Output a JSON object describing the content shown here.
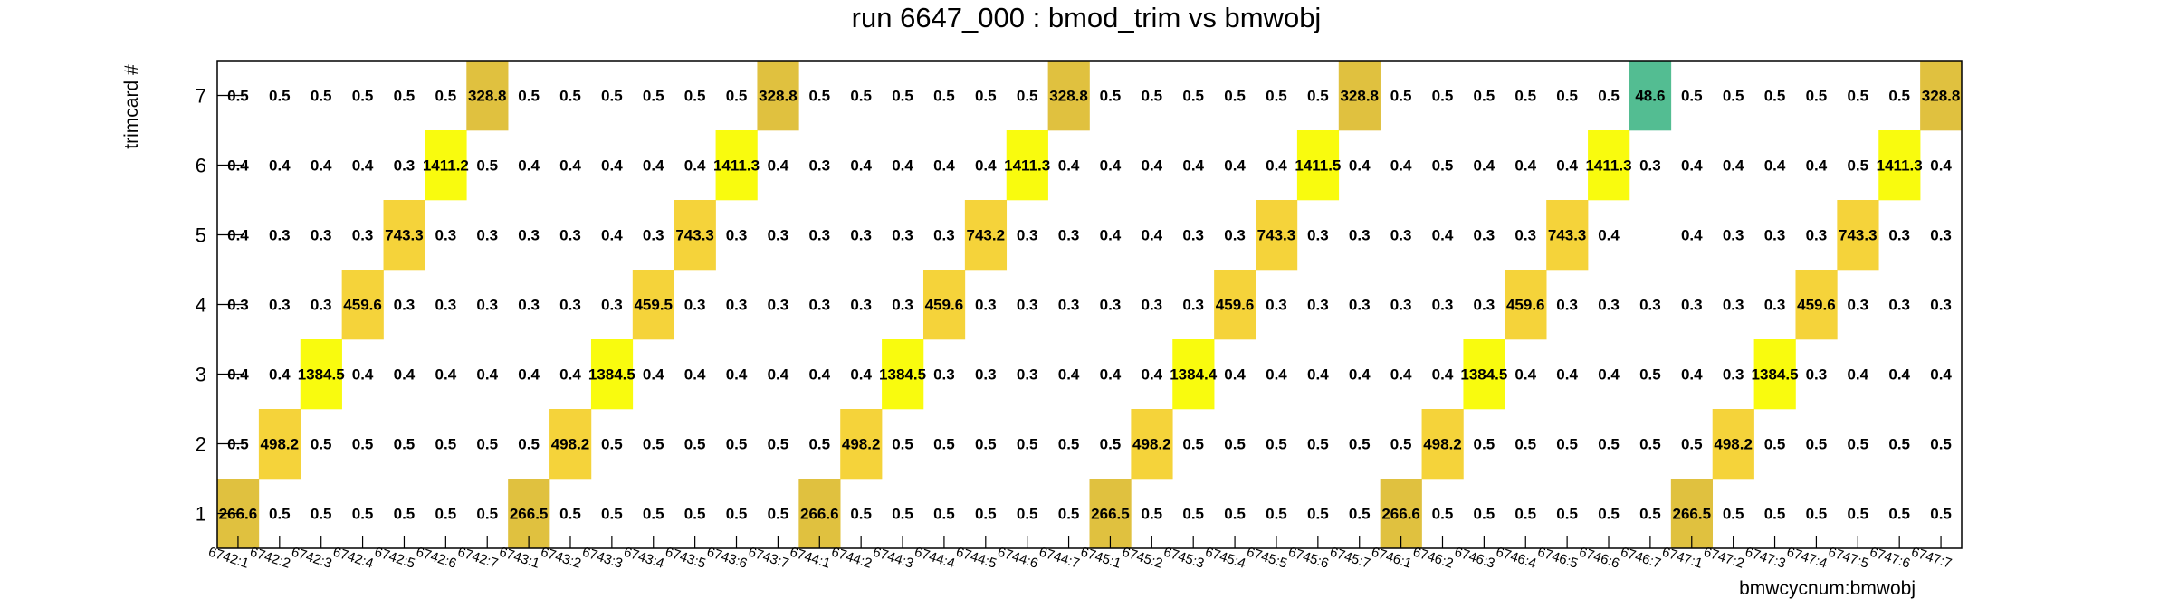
{
  "chart_data": {
    "type": "heatmap",
    "title": "run 6647_000 : bmod_trim vs bmwobj",
    "xlabel": "bmwcycnum:bmwobj",
    "ylabel": "trimcard #",
    "x_categories": [
      "6742:1",
      "6742:2",
      "6742:3",
      "6742:4",
      "6742:5",
      "6742:6",
      "6742:7",
      "6743:1",
      "6743:2",
      "6743:3",
      "6743:4",
      "6743:5",
      "6743:6",
      "6743:7",
      "6744:1",
      "6744:2",
      "6744:3",
      "6744:4",
      "6744:5",
      "6744:6",
      "6744:7",
      "6745:1",
      "6745:2",
      "6745:3",
      "6745:4",
      "6745:5",
      "6745:6",
      "6745:7",
      "6746:1",
      "6746:2",
      "6746:3",
      "6746:4",
      "6746:5",
      "6746:6",
      "6746:7",
      "6747:1",
      "6747:2",
      "6747:3",
      "6747:4",
      "6747:5",
      "6747:6",
      "6747:7"
    ],
    "y_categories": [
      "1",
      "2",
      "3",
      "4",
      "5",
      "6",
      "7"
    ],
    "rows": {
      "1": [
        "266.6",
        "0.5",
        "0.5",
        "0.5",
        "0.5",
        "0.5",
        "0.5",
        "266.5",
        "0.5",
        "0.5",
        "0.5",
        "0.5",
        "0.5",
        "0.5",
        "266.6",
        "0.5",
        "0.5",
        "0.5",
        "0.5",
        "0.5",
        "0.5",
        "266.5",
        "0.5",
        "0.5",
        "0.5",
        "0.5",
        "0.5",
        "0.5",
        "266.6",
        "0.5",
        "0.5",
        "0.5",
        "0.5",
        "0.5",
        "0.5",
        "266.5",
        "0.5",
        "0.5",
        "0.5",
        "0.5",
        "0.5",
        "0.5"
      ],
      "2": [
        "0.5",
        "498.2",
        "0.5",
        "0.5",
        "0.5",
        "0.5",
        "0.5",
        "0.5",
        "498.2",
        "0.5",
        "0.5",
        "0.5",
        "0.5",
        "0.5",
        "0.5",
        "498.2",
        "0.5",
        "0.5",
        "0.5",
        "0.5",
        "0.5",
        "0.5",
        "498.2",
        "0.5",
        "0.5",
        "0.5",
        "0.5",
        "0.5",
        "0.5",
        "498.2",
        "0.5",
        "0.5",
        "0.5",
        "0.5",
        "0.5",
        "0.5",
        "498.2",
        "0.5",
        "0.5",
        "0.5",
        "0.5",
        "0.5"
      ],
      "3": [
        "0.4",
        "0.4",
        "1384.5",
        "0.4",
        "0.4",
        "0.4",
        "0.4",
        "0.4",
        "0.4",
        "1384.5",
        "0.4",
        "0.4",
        "0.4",
        "0.4",
        "0.4",
        "0.4",
        "1384.5",
        "0.3",
        "0.3",
        "0.3",
        "0.4",
        "0.4",
        "0.4",
        "1384.4",
        "0.4",
        "0.4",
        "0.4",
        "0.4",
        "0.4",
        "0.4",
        "1384.5",
        "0.4",
        "0.4",
        "0.4",
        "0.5",
        "0.4",
        "0.3",
        "1384.5",
        "0.3",
        "0.4",
        "0.4",
        "0.4"
      ],
      "4": [
        "0.3",
        "0.3",
        "0.3",
        "459.6",
        "0.3",
        "0.3",
        "0.3",
        "0.3",
        "0.3",
        "0.3",
        "459.5",
        "0.3",
        "0.3",
        "0.3",
        "0.3",
        "0.3",
        "0.3",
        "459.6",
        "0.3",
        "0.3",
        "0.3",
        "0.3",
        "0.3",
        "0.3",
        "459.6",
        "0.3",
        "0.3",
        "0.3",
        "0.3",
        "0.3",
        "0.3",
        "459.6",
        "0.3",
        "0.3",
        "0.3",
        "0.3",
        "0.3",
        "0.3",
        "459.6",
        "0.3",
        "0.3",
        "0.3"
      ],
      "5": [
        "0.4",
        "0.3",
        "0.3",
        "0.3",
        "743.3",
        "0.3",
        "0.3",
        "0.3",
        "0.3",
        "0.4",
        "0.3",
        "743.3",
        "0.3",
        "0.3",
        "0.3",
        "0.3",
        "0.3",
        "0.3",
        "743.2",
        "0.3",
        "0.3",
        "0.4",
        "0.4",
        "0.3",
        "0.3",
        "743.3",
        "0.3",
        "0.3",
        "0.3",
        "0.4",
        "0.3",
        "0.3",
        "743.3",
        "0.4",
        "",
        "0.4",
        "0.3",
        "0.3",
        "0.3",
        "743.3",
        "0.3",
        "0.3"
      ],
      "6": [
        "0.4",
        "0.4",
        "0.4",
        "0.4",
        "0.3",
        "1411.2",
        "0.5",
        "0.4",
        "0.4",
        "0.4",
        "0.4",
        "0.4",
        "1411.3",
        "0.4",
        "0.3",
        "0.4",
        "0.4",
        "0.4",
        "0.4",
        "1411.3",
        "0.4",
        "0.4",
        "0.4",
        "0.4",
        "0.4",
        "0.4",
        "1411.5",
        "0.4",
        "0.4",
        "0.5",
        "0.4",
        "0.4",
        "0.4",
        "1411.3",
        "0.3",
        "0.4",
        "0.4",
        "0.4",
        "0.4",
        "0.5",
        "1411.3",
        "0.4"
      ],
      "7": [
        "0.5",
        "0.5",
        "0.5",
        "0.5",
        "0.5",
        "0.5",
        "328.8",
        "0.5",
        "0.5",
        "0.5",
        "0.5",
        "0.5",
        "0.5",
        "328.8",
        "0.5",
        "0.5",
        "0.5",
        "0.5",
        "0.5",
        "0.5",
        "328.8",
        "0.5",
        "0.5",
        "0.5",
        "0.5",
        "0.5",
        "0.5",
        "328.8",
        "0.5",
        "0.5",
        "0.5",
        "0.5",
        "0.5",
        "0.5",
        "48.6",
        "0.5",
        "0.5",
        "0.5",
        "0.5",
        "0.5",
        "0.5",
        "328.8"
      ]
    },
    "colors": {
      "low": "#ffffff",
      "yellow": "#f9fb0e",
      "gold": "#e0c13f",
      "amber": "#f5d33a",
      "green": "#53bd92"
    },
    "grid": false,
    "legend": "none"
  }
}
